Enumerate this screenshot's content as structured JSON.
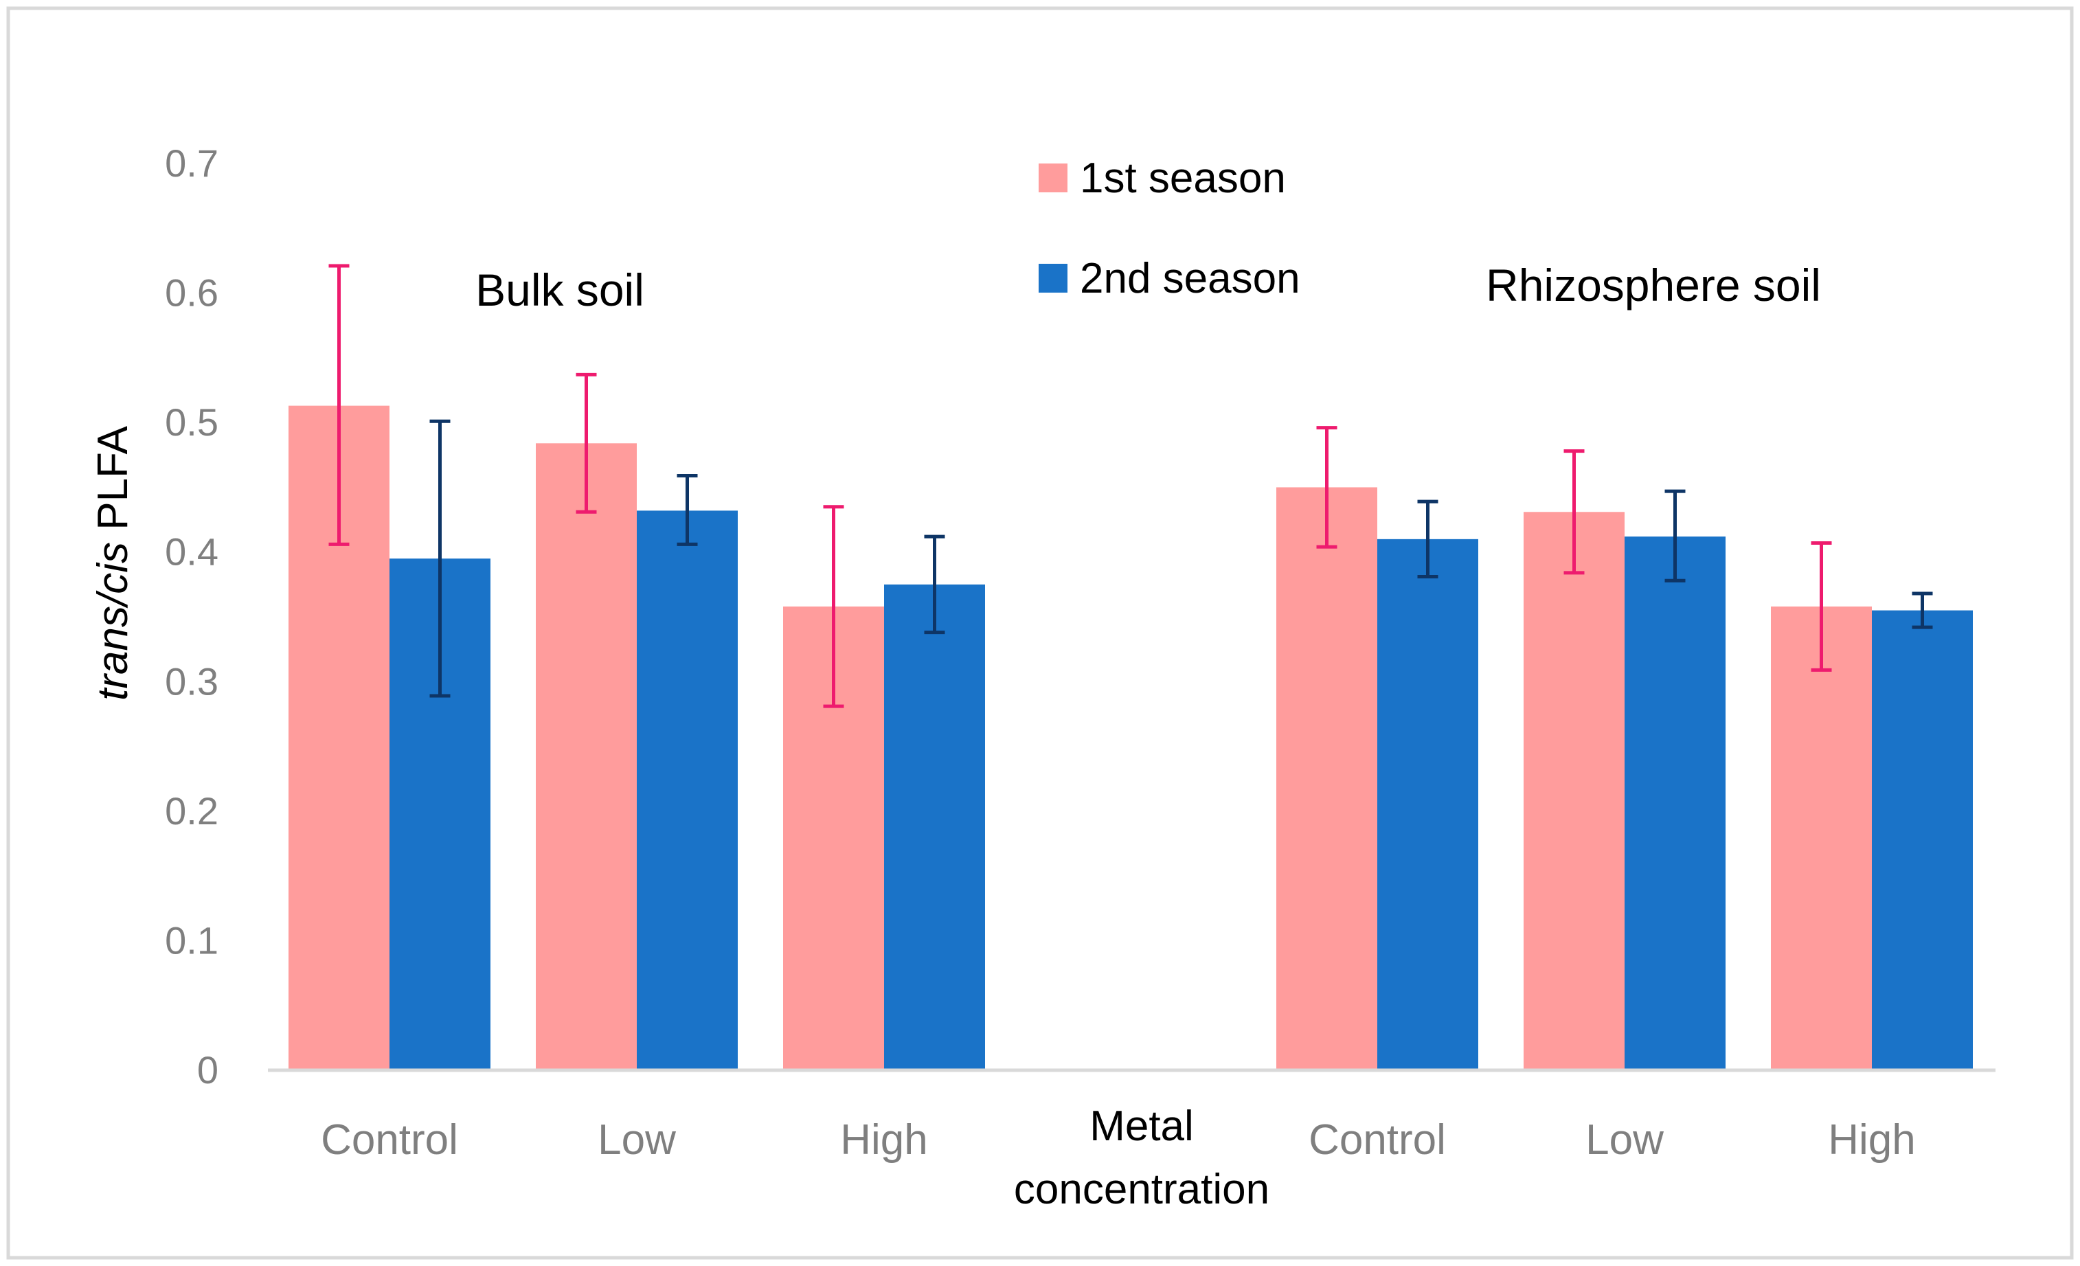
{
  "chart_data": {
    "type": "bar",
    "ylabel_italic": "trans/cis",
    "ylabel_rest": " PLFA",
    "xlabel_line1": "Metal",
    "xlabel_line2": "concentration",
    "ylim": [
      0,
      0.7
    ],
    "yticks": [
      "0",
      "0.1",
      "0.2",
      "0.3",
      "0.4",
      "0.5",
      "0.6",
      "0.7"
    ],
    "groups": [
      {
        "title": "Bulk soil",
        "categories": [
          "Control",
          "Low",
          "High"
        ],
        "series": [
          {
            "name": "1st season",
            "values": [
              0.513,
              0.484,
              0.358
            ],
            "err_low": [
              0.406,
              0.431,
              0.281
            ],
            "err_high": [
              0.621,
              0.537,
              0.435
            ]
          },
          {
            "name": "2nd season",
            "values": [
              0.395,
              0.432,
              0.375
            ],
            "err_low": [
              0.289,
              0.406,
              0.338
            ],
            "err_high": [
              0.501,
              0.459,
              0.412
            ]
          }
        ]
      },
      {
        "title": "Rhizosphere soil",
        "categories": [
          "Control",
          "Low",
          "High"
        ],
        "series": [
          {
            "name": "1st season",
            "values": [
              0.45,
              0.431,
              0.358
            ],
            "err_low": [
              0.404,
              0.384,
              0.309
            ],
            "err_high": [
              0.496,
              0.478,
              0.407
            ]
          },
          {
            "name": "2nd season",
            "values": [
              0.41,
              0.412,
              0.355
            ],
            "err_low": [
              0.381,
              0.378,
              0.342
            ],
            "err_high": [
              0.439,
              0.447,
              0.368
            ]
          }
        ]
      }
    ],
    "legend": [
      {
        "label": "1st season",
        "color": "#ff9c9c"
      },
      {
        "label": "2nd season",
        "color": "#1a73c8"
      }
    ],
    "legend_position": "top-center",
    "grid": false,
    "colors": {
      "season1_bar": "#ff9c9c",
      "season2_bar": "#1a73c8",
      "season1_error": "#ee1b6e",
      "season2_error": "#0e3566",
      "axis": "#d9d9d9",
      "frame": "#d9d9d9"
    }
  }
}
